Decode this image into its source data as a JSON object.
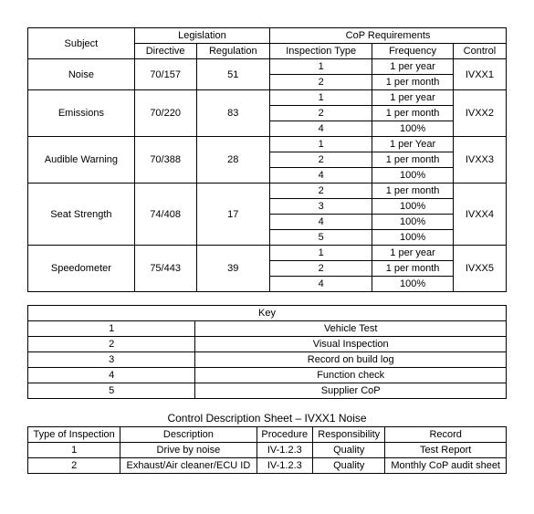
{
  "main": {
    "headers": {
      "subject": "Subject",
      "legislation": "Legislation",
      "directive": "Directive",
      "regulation": "Regulation",
      "cop": "CoP Requirements",
      "insp_type": "Inspection Type",
      "frequency": "Frequency",
      "control": "Control"
    },
    "rows": [
      {
        "subject": "Noise",
        "directive": "70/157",
        "regulation": "51",
        "control": "IVXX1",
        "items": [
          {
            "t": "1",
            "f": "1 per year"
          },
          {
            "t": "2",
            "f": "1 per month"
          }
        ]
      },
      {
        "subject": "Emissions",
        "directive": "70/220",
        "regulation": "83",
        "control": "IVXX2",
        "items": [
          {
            "t": "1",
            "f": "1 per year"
          },
          {
            "t": "2",
            "f": "1 per month"
          },
          {
            "t": "4",
            "f": "100%"
          }
        ]
      },
      {
        "subject": "Audible Warning",
        "directive": "70/388",
        "regulation": "28",
        "control": "IVXX3",
        "items": [
          {
            "t": "1",
            "f": "1 per Year"
          },
          {
            "t": "2",
            "f": "1 per month"
          },
          {
            "t": "4",
            "f": "100%"
          }
        ]
      },
      {
        "subject": "Seat Strength",
        "directive": "74/408",
        "regulation": "17",
        "control": "IVXX4",
        "items": [
          {
            "t": "2",
            "f": "1 per month"
          },
          {
            "t": "3",
            "f": "100%"
          },
          {
            "t": "4",
            "f": "100%"
          },
          {
            "t": "5",
            "f": "100%"
          }
        ]
      },
      {
        "subject": "Speedometer",
        "directive": "75/443",
        "regulation": "39",
        "control": "IVXX5",
        "items": [
          {
            "t": "1",
            "f": "1 per year"
          },
          {
            "t": "2",
            "f": "1 per month"
          },
          {
            "t": "4",
            "f": "100%"
          }
        ]
      }
    ]
  },
  "key": {
    "title": "Key",
    "rows": [
      {
        "n": "1",
        "d": "Vehicle Test"
      },
      {
        "n": "2",
        "d": "Visual Inspection"
      },
      {
        "n": "3",
        "d": "Record on build log"
      },
      {
        "n": "4",
        "d": "Function check"
      },
      {
        "n": "5",
        "d": "Supplier CoP"
      }
    ]
  },
  "cds": {
    "title": "Control Description Sheet – IVXX1 Noise",
    "headers": {
      "type": "Type of Inspection",
      "desc": "Description",
      "proc": "Procedure",
      "resp": "Responsibility",
      "rec": "Record"
    },
    "rows": [
      {
        "type": "1",
        "desc": "Drive by noise",
        "proc": "IV-1.2.3",
        "resp": "Quality",
        "rec": "Test Report"
      },
      {
        "type": "2",
        "desc": "Exhaust/Air cleaner/ECU ID",
        "proc": "IV-1.2.3",
        "resp": "Quality",
        "rec": "Monthly CoP audit sheet"
      }
    ]
  }
}
